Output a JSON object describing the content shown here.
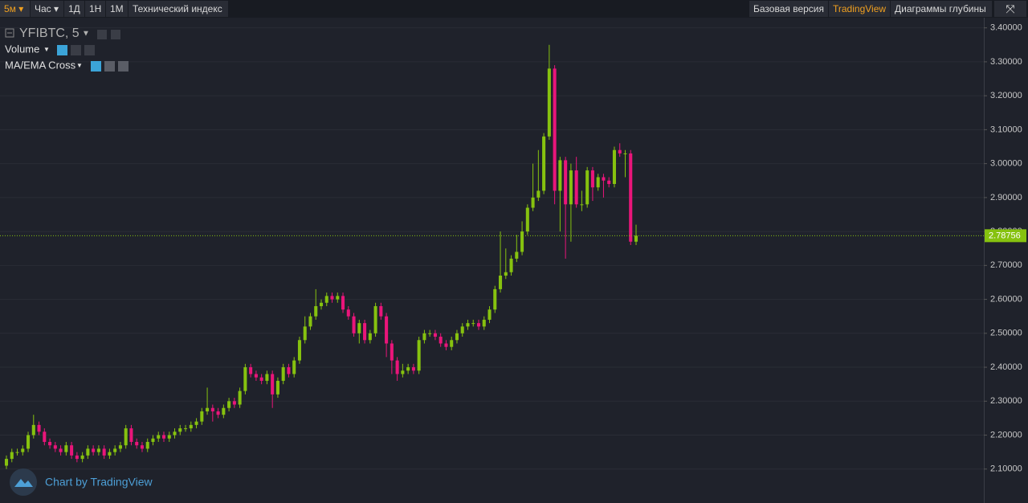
{
  "toolbar": {
    "intervals": [
      "5м",
      "Час",
      "1Д",
      "1Н",
      "1М"
    ],
    "indicators": "Технический индекс",
    "views": [
      "Базовая версия",
      "TradingView",
      "Диаграммы глубины"
    ]
  },
  "legend": {
    "symbol": "YFIBTC, 5",
    "studies": [
      "Volume",
      "MA/EMA Cross"
    ]
  },
  "watermark": "Chart by TradingView",
  "chart_data": {
    "type": "candlestick",
    "open": [
      2.11,
      2.13,
      2.15,
      2.15,
      2.16,
      2.2,
      2.23,
      2.21,
      2.18,
      2.17,
      2.16,
      2.15,
      2.17,
      2.14,
      2.13,
      2.14,
      2.16,
      2.15,
      2.16,
      2.14,
      2.15,
      2.16,
      2.17,
      2.22,
      2.18,
      2.17,
      2.16,
      2.18,
      2.19,
      2.2,
      2.19,
      2.2,
      2.21,
      2.22,
      2.22,
      2.23,
      2.24,
      2.27,
      2.28,
      2.27,
      2.26,
      2.28,
      2.3,
      2.29,
      2.33,
      2.4,
      2.38,
      2.37,
      2.36,
      2.38,
      2.32,
      2.36,
      2.4,
      2.38,
      2.42,
      2.48,
      2.52,
      2.55,
      2.58,
      2.59,
      2.61,
      2.6,
      2.61,
      2.57,
      2.55,
      2.5,
      2.53,
      2.48,
      2.5,
      2.58,
      2.55,
      2.47,
      2.42,
      2.38,
      2.39,
      2.4,
      2.39,
      2.48,
      2.5,
      2.5,
      2.49,
      2.47,
      2.46,
      2.48,
      2.5,
      2.52,
      2.53,
      2.53,
      2.52,
      2.54,
      2.57,
      2.63,
      2.67,
      2.68,
      2.72,
      2.74,
      2.8,
      2.87,
      2.9,
      2.92,
      3.08,
      3.28,
      2.92,
      3.01,
      2.88,
      2.98,
      2.88,
      2.88,
      2.98,
      2.93,
      2.96,
      2.95,
      2.94,
      3.04,
      3.03,
      3.03,
      2.77
    ],
    "high": [
      2.14,
      2.16,
      2.16,
      2.17,
      2.21,
      2.26,
      2.24,
      2.22,
      2.19,
      2.18,
      2.17,
      2.18,
      2.18,
      2.15,
      2.15,
      2.17,
      2.17,
      2.17,
      2.17,
      2.16,
      2.17,
      2.18,
      2.23,
      2.23,
      2.19,
      2.18,
      2.19,
      2.2,
      2.21,
      2.21,
      2.21,
      2.22,
      2.23,
      2.23,
      2.24,
      2.25,
      2.28,
      2.34,
      2.29,
      2.28,
      2.29,
      2.31,
      2.31,
      2.34,
      2.41,
      2.41,
      2.39,
      2.38,
      2.39,
      2.39,
      2.37,
      2.41,
      2.41,
      2.43,
      2.49,
      2.55,
      2.56,
      2.63,
      2.6,
      2.62,
      2.62,
      2.62,
      2.62,
      2.58,
      2.56,
      2.54,
      2.54,
      2.51,
      2.59,
      2.59,
      2.56,
      2.48,
      2.43,
      2.41,
      2.41,
      2.41,
      2.49,
      2.51,
      2.51,
      2.51,
      2.5,
      2.48,
      2.49,
      2.51,
      2.53,
      2.54,
      2.54,
      2.54,
      2.55,
      2.58,
      2.64,
      2.8,
      2.75,
      2.73,
      2.79,
      2.83,
      2.88,
      3.0,
      3.04,
      3.09,
      3.35,
      3.29,
      3.02,
      3.02,
      3.0,
      3.02,
      2.92,
      2.99,
      2.99,
      2.97,
      2.97,
      2.96,
      3.05,
      3.06,
      3.04,
      3.04,
      2.82
    ],
    "low": [
      2.1,
      2.12,
      2.14,
      2.14,
      2.15,
      2.19,
      2.2,
      2.17,
      2.16,
      2.15,
      2.14,
      2.14,
      2.13,
      2.12,
      2.12,
      2.13,
      2.14,
      2.14,
      2.13,
      2.13,
      2.14,
      2.15,
      2.16,
      2.17,
      2.16,
      2.15,
      2.15,
      2.17,
      2.18,
      2.18,
      2.18,
      2.19,
      2.2,
      2.21,
      2.21,
      2.22,
      2.23,
      2.26,
      2.24,
      2.25,
      2.25,
      2.27,
      2.28,
      2.28,
      2.32,
      2.37,
      2.36,
      2.35,
      2.35,
      2.28,
      2.31,
      2.35,
      2.37,
      2.37,
      2.41,
      2.47,
      2.51,
      2.54,
      2.57,
      2.58,
      2.59,
      2.59,
      2.56,
      2.54,
      2.49,
      2.47,
      2.47,
      2.47,
      2.49,
      2.54,
      2.43,
      2.38,
      2.36,
      2.37,
      2.38,
      2.38,
      2.38,
      2.47,
      2.49,
      2.48,
      2.46,
      2.45,
      2.45,
      2.47,
      2.49,
      2.51,
      2.52,
      2.51,
      2.51,
      2.53,
      2.56,
      2.62,
      2.66,
      2.67,
      2.71,
      2.73,
      2.79,
      2.86,
      2.89,
      2.91,
      3.07,
      2.88,
      2.8,
      2.72,
      2.77,
      2.87,
      2.86,
      2.87,
      2.89,
      2.92,
      2.9,
      2.93,
      2.93,
      3.02,
      2.96,
      2.76,
      2.76
    ],
    "close": [
      2.13,
      2.15,
      2.15,
      2.16,
      2.2,
      2.23,
      2.21,
      2.18,
      2.17,
      2.16,
      2.15,
      2.17,
      2.14,
      2.13,
      2.14,
      2.16,
      2.15,
      2.16,
      2.14,
      2.15,
      2.16,
      2.17,
      2.22,
      2.18,
      2.17,
      2.16,
      2.18,
      2.19,
      2.2,
      2.19,
      2.2,
      2.21,
      2.22,
      2.22,
      2.23,
      2.24,
      2.27,
      2.28,
      2.27,
      2.26,
      2.28,
      2.3,
      2.29,
      2.33,
      2.4,
      2.38,
      2.37,
      2.36,
      2.38,
      2.32,
      2.36,
      2.4,
      2.38,
      2.42,
      2.48,
      2.52,
      2.55,
      2.58,
      2.59,
      2.61,
      2.6,
      2.61,
      2.57,
      2.55,
      2.5,
      2.53,
      2.48,
      2.5,
      2.58,
      2.55,
      2.47,
      2.42,
      2.38,
      2.39,
      2.4,
      2.39,
      2.48,
      2.5,
      2.5,
      2.49,
      2.47,
      2.46,
      2.48,
      2.5,
      2.52,
      2.53,
      2.53,
      2.52,
      2.54,
      2.57,
      2.63,
      2.67,
      2.68,
      2.72,
      2.74,
      2.8,
      2.87,
      2.9,
      2.92,
      3.08,
      3.28,
      2.92,
      3.01,
      2.88,
      2.98,
      2.88,
      2.88,
      2.98,
      2.93,
      2.96,
      2.95,
      2.94,
      3.04,
      3.03,
      3.03,
      2.77,
      2.78756
    ],
    "up_color": "#86c20f",
    "down_color": "#e9157a",
    "ylim": [
      2.0,
      3.43
    ],
    "yticks": [
      {
        "value": 2.1,
        "label": "2.10000"
      },
      {
        "value": 2.2,
        "label": "2.20000"
      },
      {
        "value": 2.3,
        "label": "2.30000"
      },
      {
        "value": 2.4,
        "label": "2.40000"
      },
      {
        "value": 2.5,
        "label": "2.50000"
      },
      {
        "value": 2.6,
        "label": "2.60000"
      },
      {
        "value": 2.7,
        "label": "2.70000"
      },
      {
        "value": 2.8,
        "label": "2.80000"
      },
      {
        "value": 2.9,
        "label": "2.90000"
      },
      {
        "value": 3.0,
        "label": "3.00000"
      },
      {
        "value": 3.1,
        "label": "3.10000"
      },
      {
        "value": 3.2,
        "label": "3.20000"
      },
      {
        "value": 3.3,
        "label": "3.30000"
      },
      {
        "value": 3.4,
        "label": "3.40000"
      }
    ],
    "grid": true,
    "last_price_line": true
  }
}
